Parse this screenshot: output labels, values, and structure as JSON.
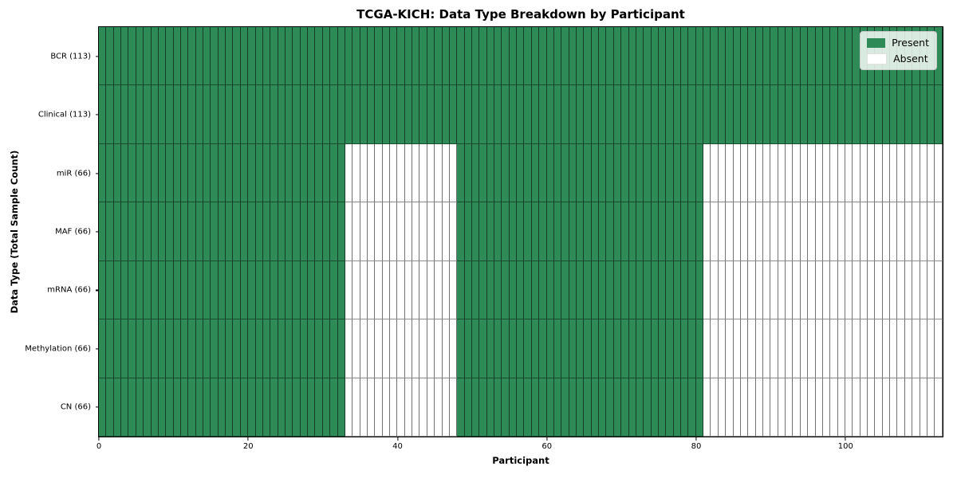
{
  "chart_data": {
    "type": "heatmap",
    "title": "TCGA-KICH: Data Type Breakdown by Participant",
    "xlabel": "Participant",
    "ylabel": "Data Type (Total Sample Count)",
    "n_participants": 113,
    "xlim": [
      0,
      113
    ],
    "x_ticks": [
      0,
      20,
      40,
      60,
      80,
      100
    ],
    "grid": "cell-edges",
    "legend_position": "upper right",
    "colors": {
      "present": "#2e8b57",
      "absent": "#ffffff"
    },
    "legend": [
      {
        "label": "Present",
        "state": "present"
      },
      {
        "label": "Absent",
        "state": "absent"
      }
    ],
    "rows": [
      {
        "label": "BCR (113)",
        "present_count": 113,
        "segments": [
          {
            "from": 0,
            "to": 113,
            "state": "present"
          }
        ]
      },
      {
        "label": "Clinical (113)",
        "present_count": 113,
        "segments": [
          {
            "from": 0,
            "to": 113,
            "state": "present"
          }
        ]
      },
      {
        "label": "miR (66)",
        "present_count": 66,
        "segments": [
          {
            "from": 0,
            "to": 33,
            "state": "present"
          },
          {
            "from": 33,
            "to": 48,
            "state": "absent"
          },
          {
            "from": 48,
            "to": 81,
            "state": "present"
          },
          {
            "from": 81,
            "to": 113,
            "state": "absent"
          }
        ]
      },
      {
        "label": "MAF (66)",
        "present_count": 66,
        "segments": [
          {
            "from": 0,
            "to": 33,
            "state": "present"
          },
          {
            "from": 33,
            "to": 48,
            "state": "absent"
          },
          {
            "from": 48,
            "to": 81,
            "state": "present"
          },
          {
            "from": 81,
            "to": 113,
            "state": "absent"
          }
        ]
      },
      {
        "label": "mRNA (66)",
        "present_count": 66,
        "segments": [
          {
            "from": 0,
            "to": 33,
            "state": "present"
          },
          {
            "from": 33,
            "to": 48,
            "state": "absent"
          },
          {
            "from": 48,
            "to": 81,
            "state": "present"
          },
          {
            "from": 81,
            "to": 113,
            "state": "absent"
          }
        ]
      },
      {
        "label": "Methylation (66)",
        "present_count": 66,
        "segments": [
          {
            "from": 0,
            "to": 33,
            "state": "present"
          },
          {
            "from": 33,
            "to": 48,
            "state": "absent"
          },
          {
            "from": 48,
            "to": 81,
            "state": "present"
          },
          {
            "from": 81,
            "to": 113,
            "state": "absent"
          }
        ]
      },
      {
        "label": "CN (66)",
        "present_count": 66,
        "segments": [
          {
            "from": 0,
            "to": 33,
            "state": "present"
          },
          {
            "from": 33,
            "to": 48,
            "state": "absent"
          },
          {
            "from": 48,
            "to": 81,
            "state": "present"
          },
          {
            "from": 81,
            "to": 113,
            "state": "absent"
          }
        ]
      }
    ]
  }
}
